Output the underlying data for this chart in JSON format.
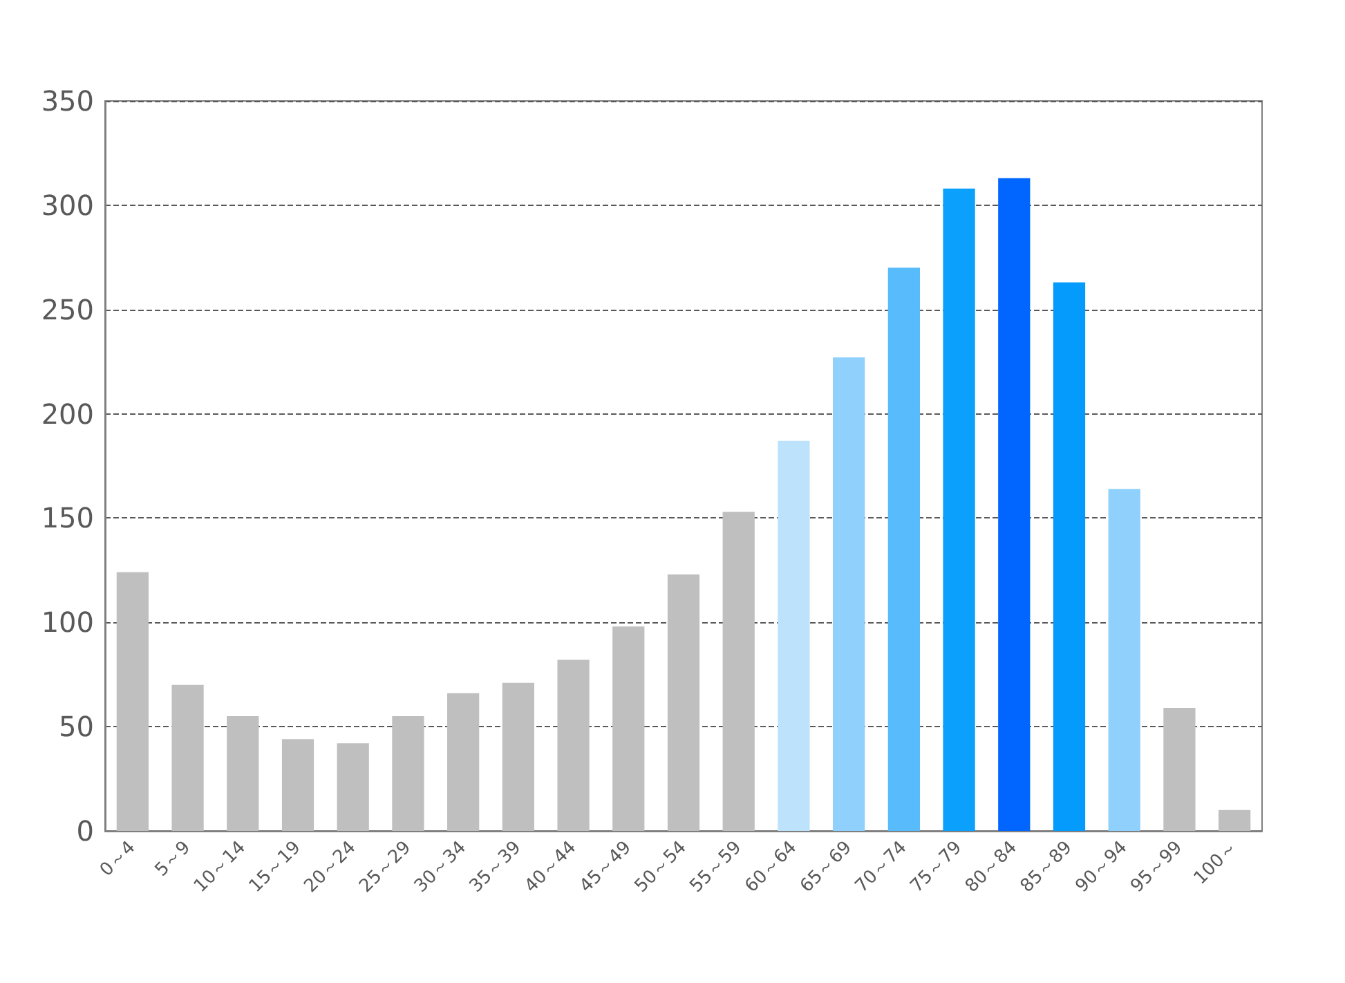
{
  "chart_data": {
    "type": "bar",
    "categories": [
      "0～4",
      "5～9",
      "10～14",
      "15～19",
      "20～24",
      "25～29",
      "30～34",
      "35～39",
      "40～44",
      "45～49",
      "50～54",
      "55～59",
      "60～64",
      "65～69",
      "70～74",
      "75～79",
      "80～84",
      "85～89",
      "90～94",
      "95～99",
      "100～"
    ],
    "values": [
      124,
      70,
      55,
      44,
      42,
      55,
      66,
      71,
      82,
      98,
      123,
      153,
      187,
      227,
      270,
      308,
      313,
      263,
      164,
      59,
      10
    ],
    "colors": [
      "#bfbfbf",
      "#bfbfbf",
      "#bfbfbf",
      "#bfbfbf",
      "#bfbfbf",
      "#bfbfbf",
      "#bfbfbf",
      "#bfbfbf",
      "#bfbfbf",
      "#bfbfbf",
      "#bfbfbf",
      "#bfbfbf",
      "#bde3fc",
      "#8fd0fc",
      "#57bbfc",
      "#0aa0fc",
      "#0066ff",
      "#059bfc",
      "#8fd0fc",
      "#bfbfbf",
      "#bfbfbf"
    ],
    "ylim": [
      0,
      350
    ],
    "yticks": [
      0,
      50,
      100,
      150,
      200,
      250,
      300,
      350
    ],
    "grid": "y"
  }
}
